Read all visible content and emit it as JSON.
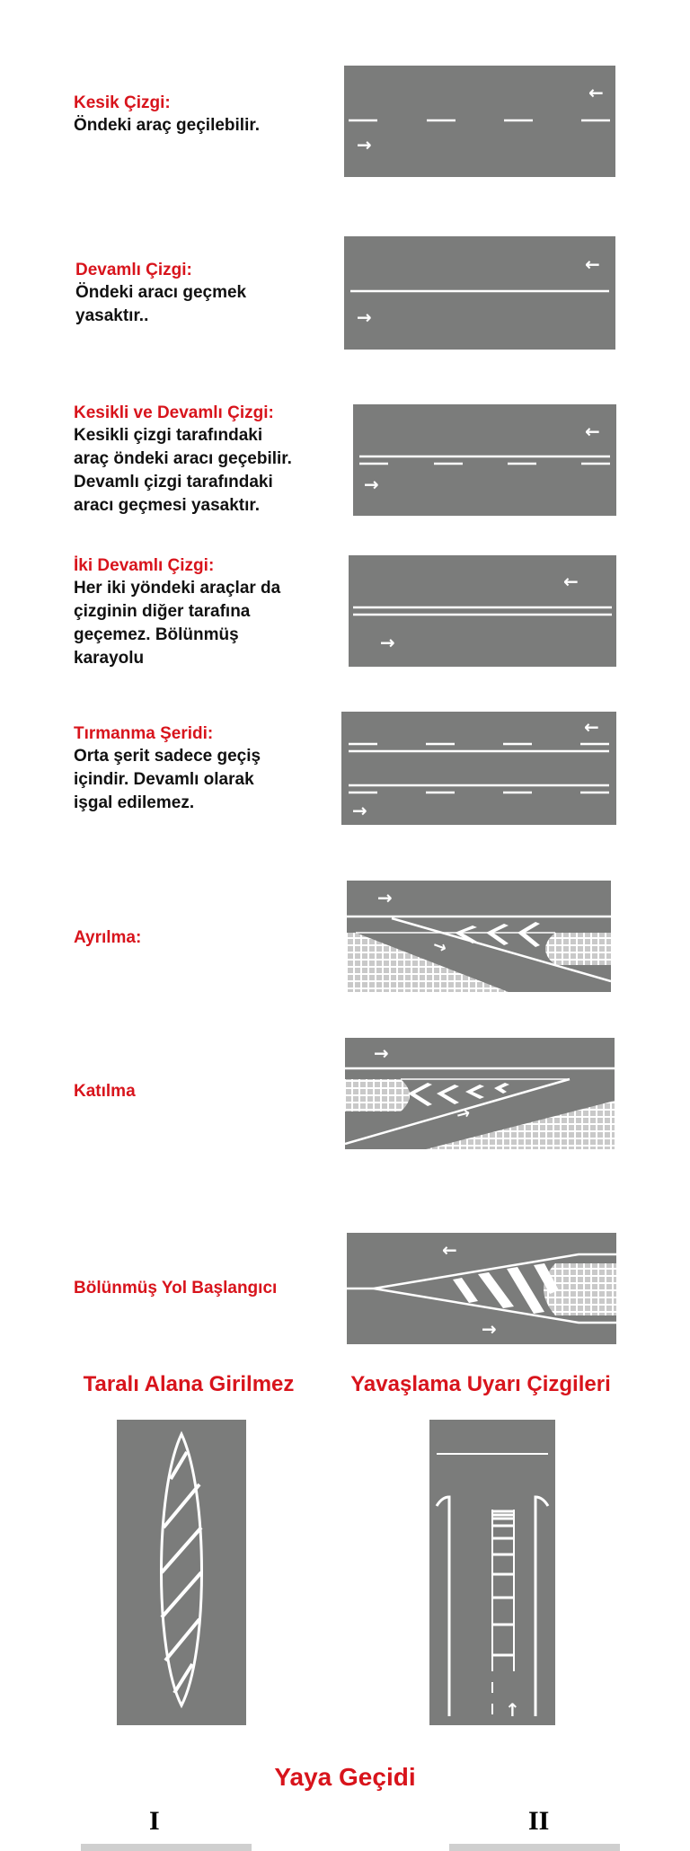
{
  "colors": {
    "road": "#7b7c7b",
    "marking": "#ffffff",
    "title": "#d8141c"
  },
  "sections": [
    {
      "title": "Kesik Çizgi:",
      "desc": [
        "Öndeki araç geçilebilir."
      ]
    },
    {
      "title": "Devamlı Çizgi:",
      "desc": [
        "Öndeki aracı geçmek",
        "yasaktır.."
      ]
    },
    {
      "title": "Kesikli ve Devamlı Çizgi:",
      "desc": [
        "Kesikli çizgi tarafındaki",
        "araç öndeki aracı geçebilir.",
        "Devamlı çizgi tarafındaki",
        "aracı geçmesi yasaktır."
      ]
    },
    {
      "title": "İki Devamlı Çizgi:",
      "desc": [
        "Her iki yöndeki araçlar da",
        "çizginin diğer tarafına",
        "geçemez. Bölünmüş",
        "karayolu"
      ]
    },
    {
      "title": "Tırmanma Şeridi:",
      "desc": [
        "Orta şerit sadece geçiş",
        "içindir. Devamlı olarak",
        "işgal edilemez."
      ]
    },
    {
      "title": "Ayrılma:",
      "desc": []
    },
    {
      "title": "Katılma",
      "desc": []
    },
    {
      "title": "Bölünmüş Yol Başlangıcı",
      "desc": []
    }
  ],
  "bottom": {
    "left_title": "Taralı Alana Girilmez",
    "right_title": "Yavaşlama Uyarı Çizgileri",
    "crossing_title": "Yaya Geçidi",
    "roman_left": "I",
    "roman_right": "II"
  }
}
